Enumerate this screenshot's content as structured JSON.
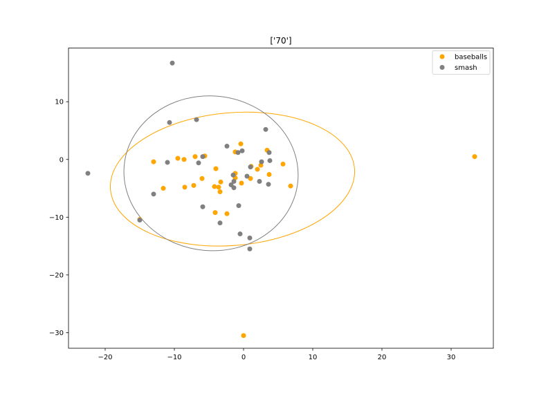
{
  "chart_data": {
    "type": "scatter",
    "title": "['70']",
    "xlabel": "",
    "ylabel": "",
    "xlim": [
      -25.3,
      36.1
    ],
    "ylim": [
      -32.7,
      19.3
    ],
    "xticks": [
      -20,
      -10,
      0,
      10,
      20,
      30
    ],
    "yticks": [
      10,
      0,
      -10,
      -20,
      -30
    ],
    "xtick_labels": [
      "−20",
      "−10",
      "0",
      "10",
      "20",
      "30"
    ],
    "ytick_labels": [
      "10",
      "0",
      "−10",
      "−20",
      "−30"
    ],
    "grid": false,
    "legend_placement": "top-right",
    "series": [
      {
        "name": "baseballs",
        "color": "#ffa500",
        "points": [
          [
            -13.0,
            -0.4
          ],
          [
            -11.6,
            -5.0
          ],
          [
            -9.5,
            0.2
          ],
          [
            -8.6,
            0.0
          ],
          [
            -8.5,
            -4.8
          ],
          [
            -7.2,
            -4.5
          ],
          [
            -7.0,
            0.5
          ],
          [
            -6.0,
            -3.3
          ],
          [
            -5.6,
            0.6
          ],
          [
            -4.2,
            -4.7
          ],
          [
            -4.1,
            -9.2
          ],
          [
            -4.0,
            -1.6
          ],
          [
            -3.6,
            -4.8
          ],
          [
            -3.4,
            -5.6
          ],
          [
            -3.3,
            -3.9
          ],
          [
            -2.4,
            -9.4
          ],
          [
            -1.2,
            1.3
          ],
          [
            -1.2,
            -2.4
          ],
          [
            -1.2,
            -3.2
          ],
          [
            -0.4,
            2.7
          ],
          [
            -0.3,
            -4.1
          ],
          [
            0.0,
            -30.5
          ],
          [
            1.0,
            -3.3
          ],
          [
            1.1,
            -1.2
          ],
          [
            2.0,
            -1.7
          ],
          [
            2.5,
            -1.0
          ],
          [
            3.4,
            1.6
          ],
          [
            3.7,
            -2.6
          ],
          [
            5.7,
            -0.8
          ],
          [
            6.8,
            -4.6
          ],
          [
            33.4,
            0.5
          ],
          [
            -15.0,
            -10.4
          ]
        ],
        "ellipse": {
          "center": [
            -1.6,
            -3.4
          ],
          "rx": 17.7,
          "ry": 11.5,
          "angle_deg": 5
        }
      },
      {
        "name": "smash",
        "color": "#808080",
        "points": [
          [
            -22.5,
            -2.4
          ],
          [
            -15.0,
            -10.5
          ],
          [
            -13.0,
            -6.0
          ],
          [
            -11.0,
            -0.5
          ],
          [
            -10.7,
            6.4
          ],
          [
            -10.3,
            16.7
          ],
          [
            -6.8,
            6.9
          ],
          [
            -6.5,
            -0.6
          ],
          [
            -5.9,
            0.5
          ],
          [
            -5.9,
            -8.2
          ],
          [
            -3.4,
            -11.0
          ],
          [
            -2.4,
            2.3
          ],
          [
            -1.8,
            -4.4
          ],
          [
            -1.5,
            -2.7
          ],
          [
            -1.4,
            -3.8
          ],
          [
            -1.4,
            -4.9
          ],
          [
            -0.8,
            1.2
          ],
          [
            -0.7,
            -8.0
          ],
          [
            -0.5,
            -12.9
          ],
          [
            -0.2,
            1.5
          ],
          [
            0.5,
            -2.9
          ],
          [
            0.9,
            -13.6
          ],
          [
            0.9,
            -15.5
          ],
          [
            1.0,
            -1.3
          ],
          [
            2.3,
            -3.8
          ],
          [
            2.6,
            -0.4
          ],
          [
            3.2,
            5.2
          ],
          [
            3.6,
            -4.3
          ],
          [
            3.7,
            1.2
          ],
          [
            3.8,
            -0.2
          ]
        ],
        "ellipse": {
          "center": [
            -4.7,
            -2.4
          ],
          "rx": 12.6,
          "ry": 13.4,
          "angle_deg": -5
        }
      }
    ]
  }
}
